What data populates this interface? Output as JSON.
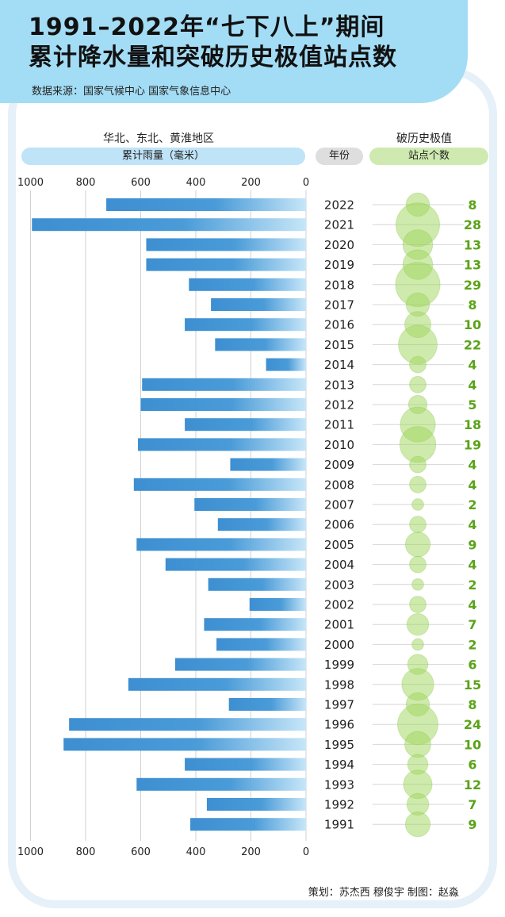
{
  "header": {
    "title_line1": "1991–2022年“七下八上”期间",
    "title_line2": "累计降水量和突破历史极值站点数",
    "source": "数据来源：国家气候中心  国家气象信息中心"
  },
  "labels": {
    "region": "华北、东北、黄淮地区",
    "rain_pill": "累计雨量（毫米）",
    "year_pill": "年份",
    "record_title": "破历史极值",
    "count_pill": "站点个数"
  },
  "credits": "策划：苏杰西  穆俊宇    制图：赵淼",
  "colors": {
    "header_bg": "#a3dcf5",
    "bar_dark": "#3d8fd1",
    "bar_light": "#bfe3f7",
    "bubble": "#9fd65c",
    "count_text": "#5aa317"
  },
  "chart_data": [
    {
      "type": "bar",
      "orientation": "horizontal",
      "direction": "right-to-left",
      "title": "累计雨量（毫米）",
      "xlim": [
        0,
        1000
      ],
      "ticks": [
        1000,
        800,
        600,
        400,
        200,
        0
      ],
      "tick_labels": [
        "1000",
        "800",
        "600",
        "400",
        "200",
        "0"
      ],
      "categories": [
        "2022",
        "2021",
        "2020",
        "2019",
        "2018",
        "2017",
        "2016",
        "2015",
        "2014",
        "2013",
        "2012",
        "2011",
        "2010",
        "2009",
        "2008",
        "2007",
        "2006",
        "2005",
        "2004",
        "2003",
        "2002",
        "2001",
        "2000",
        "1999",
        "1998",
        "1997",
        "1996",
        "1995",
        "1994",
        "1993",
        "1992",
        "1991"
      ],
      "values": [
        725,
        995,
        580,
        580,
        425,
        345,
        440,
        330,
        145,
        595,
        600,
        440,
        610,
        275,
        625,
        405,
        320,
        615,
        510,
        355,
        205,
        370,
        325,
        475,
        645,
        280,
        860,
        880,
        440,
        615,
        360,
        420
      ]
    },
    {
      "type": "bubble",
      "title": "破历史极值站点个数",
      "categories": [
        "2022",
        "2021",
        "2020",
        "2019",
        "2018",
        "2017",
        "2016",
        "2015",
        "2014",
        "2013",
        "2012",
        "2011",
        "2010",
        "2009",
        "2008",
        "2007",
        "2006",
        "2005",
        "2004",
        "2003",
        "2002",
        "2001",
        "2000",
        "1999",
        "1998",
        "1997",
        "1996",
        "1995",
        "1994",
        "1993",
        "1992",
        "1991"
      ],
      "values": [
        8,
        28,
        13,
        13,
        29,
        8,
        10,
        22,
        4,
        4,
        5,
        18,
        19,
        4,
        4,
        2,
        4,
        9,
        4,
        2,
        4,
        7,
        2,
        6,
        15,
        8,
        24,
        10,
        6,
        12,
        7,
        9
      ],
      "value_labels": [
        "8",
        "28",
        "13",
        "13",
        "29",
        "8",
        "10",
        "22",
        "4",
        "4",
        "5",
        "18",
        "19",
        "4",
        "4",
        "2",
        "4",
        "9",
        "4",
        "2",
        "4",
        "7",
        "2",
        "6",
        "15",
        "8",
        "24",
        "10",
        "6",
        "12",
        "7",
        "9"
      ]
    }
  ]
}
